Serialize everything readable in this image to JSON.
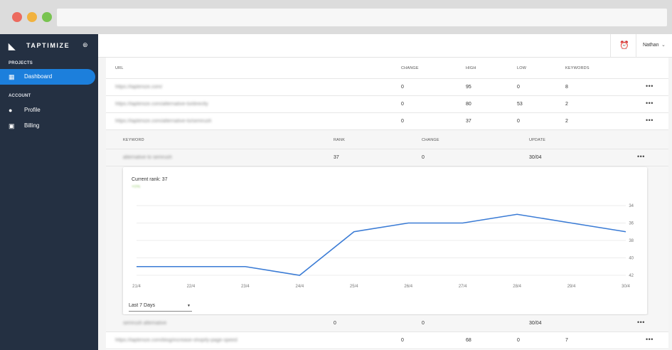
{
  "sidebar": {
    "brand": "TAPTIMIZE",
    "sections": {
      "projects": "PROJECTS",
      "account": "ACCOUNT"
    },
    "items": {
      "dashboard": "Dashboard",
      "profile": "Profile",
      "billing": "Billing"
    }
  },
  "topbar": {
    "user": "Nathan"
  },
  "table": {
    "headers": {
      "url": "URL",
      "change": "CHANGE",
      "high": "HIGH",
      "low": "LOW",
      "keywords": "KEYWORDS"
    },
    "rows": [
      {
        "url": "https://taptimize.com/",
        "change": "0",
        "high": "95",
        "low": "0",
        "keywords": "8"
      },
      {
        "url": "https://taptimize.com/alternative-to/directly",
        "change": "0",
        "high": "80",
        "low": "53",
        "keywords": "2"
      },
      {
        "url": "https://taptimize.com/alternative-to/semrush",
        "change": "0",
        "high": "37",
        "low": "0",
        "keywords": "2"
      }
    ],
    "last_row": {
      "url": "https://taptimize.com/blog/increase-shopify-page-speed",
      "change": "0",
      "high": "68",
      "low": "0",
      "keywords": "7"
    }
  },
  "keywords": {
    "headers": {
      "keyword": "KEYWORD",
      "rank": "RANK",
      "change": "CHANGE",
      "update": "UPDATE"
    },
    "rows": [
      {
        "keyword": "alternative to semrush",
        "rank": "37",
        "change": "0",
        "update": "30/04"
      },
      {
        "keyword": "semrush alternative",
        "rank": "0",
        "change": "0",
        "update": "30/04"
      }
    ]
  },
  "rank_card": {
    "title": "Current rank: 37",
    "trend": "+0%",
    "range_select": "Last 7 Days"
  },
  "chart_data": {
    "type": "line",
    "x": [
      "21/4",
      "22/4",
      "23/4",
      "24/4",
      "25/4",
      "26/4",
      "27/4",
      "28/4",
      "29/4",
      "30/4"
    ],
    "series": [
      {
        "values": [
          41,
          41,
          41,
          42,
          37,
          36,
          36,
          35,
          36,
          37
        ]
      }
    ],
    "y_ticks": [
      34,
      36,
      38,
      40,
      42
    ],
    "y_tick_labels": [
      "34",
      "36",
      "38",
      "40",
      "42"
    ],
    "ylim": [
      34,
      42
    ],
    "y_inverted": true,
    "grid": true,
    "line_color": "#3a7bd5"
  },
  "colors": {
    "sidebar_bg": "#243042",
    "accent": "#1c7fdc"
  }
}
